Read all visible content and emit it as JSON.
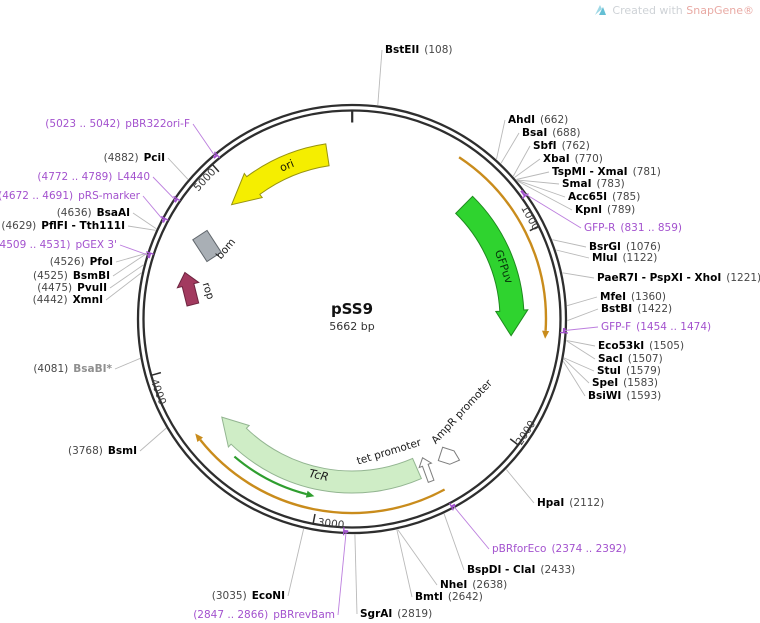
{
  "watermark": {
    "created_with": "Created with",
    "brand": "SnapGene",
    "registered": "®"
  },
  "plasmid": {
    "name": "pSS9",
    "size": "5662 bp",
    "length_bp": 5662
  },
  "ruler": {
    "ticks": [
      1000,
      2000,
      3000,
      4000,
      5000
    ],
    "origin_bp": 1
  },
  "colors": {
    "ring": "#2E2E2E",
    "leader": "#B9B9B9",
    "enzyme_name": "#000000",
    "position_text": "#474747",
    "muted_site": "#8F8F8F",
    "primer": "#A352CE",
    "primer_leader": "#BC7EDE",
    "transcript_arc": "#C98C1C",
    "inner_arrow": "#2F9E2F",
    "tick_label": "#3A3A3A"
  },
  "features": [
    {
      "label": "ori",
      "fill": "#F5EE00",
      "stroke": "#97930F",
      "text": "#1A1A00"
    },
    {
      "label": "GFPuv",
      "fill": "#2FD32F",
      "stroke": "#1E8A1E",
      "text": "#06350A"
    },
    {
      "label": "TcR",
      "fill": "#CFEDC6",
      "stroke": "#93B591",
      "text": "#1A1A1A"
    },
    {
      "label": "rop",
      "fill": "#A23A5F",
      "stroke": "#6E2540",
      "text": "#1A1A1A"
    },
    {
      "label": "bom",
      "fill": "#A9AFB5",
      "stroke": "#61676D",
      "text": "#1A1A1A"
    },
    {
      "label": "tet promoter",
      "fill": "#FFFFFF",
      "stroke": "#7D7D7D",
      "text": "#1A1A1A"
    },
    {
      "label": "AmpR promoter",
      "fill": "#FFFFFF",
      "stroke": "#7D7D7D",
      "text": "#1A1A1A"
    }
  ],
  "sites": [
    {
      "name": "BstEII",
      "pos": "(108)",
      "bp": 108,
      "type": "enzyme"
    },
    {
      "name": "AhdI",
      "pos": "(662)",
      "bp": 662,
      "type": "enzyme"
    },
    {
      "name": "BsaI",
      "pos": "(688)",
      "bp": 688,
      "type": "enzyme"
    },
    {
      "name": "SbfI",
      "pos": "(762)",
      "bp": 762,
      "type": "enzyme"
    },
    {
      "name": "XbaI",
      "pos": "(770)",
      "bp": 770,
      "type": "enzyme"
    },
    {
      "name": "TspMI - XmaI",
      "pos": "(781)",
      "bp": 781,
      "type": "enzyme"
    },
    {
      "name": "SmaI",
      "pos": "(783)",
      "bp": 783,
      "type": "enzyme"
    },
    {
      "name": "Acc65I",
      "pos": "(785)",
      "bp": 785,
      "type": "enzyme"
    },
    {
      "name": "KpnI",
      "pos": "(789)",
      "bp": 789,
      "type": "enzyme"
    },
    {
      "name": "GFP-R",
      "pos": "(831 .. 859)",
      "bp": 845,
      "bp_start": 831,
      "bp_end": 859,
      "type": "primer"
    },
    {
      "name": "BsrGI",
      "pos": "(1076)",
      "bp": 1076,
      "type": "enzyme"
    },
    {
      "name": "MluI",
      "pos": "(1122)",
      "bp": 1122,
      "type": "enzyme"
    },
    {
      "name": "PaeR7I - PspXI - XhoI",
      "pos": "(1221)",
      "bp": 1221,
      "type": "enzyme"
    },
    {
      "name": "MfeI",
      "pos": "(1360)",
      "bp": 1360,
      "type": "enzyme"
    },
    {
      "name": "BstBI",
      "pos": "(1422)",
      "bp": 1422,
      "type": "enzyme"
    },
    {
      "name": "GFP-F",
      "pos": "(1454 .. 1474)",
      "bp": 1464,
      "bp_start": 1454,
      "bp_end": 1474,
      "type": "primer"
    },
    {
      "name": "Eco53kI",
      "pos": "(1505)",
      "bp": 1505,
      "type": "enzyme"
    },
    {
      "name": "SacI",
      "pos": "(1507)",
      "bp": 1507,
      "type": "enzyme"
    },
    {
      "name": "StuI",
      "pos": "(1579)",
      "bp": 1579,
      "type": "enzyme"
    },
    {
      "name": "SpeI",
      "pos": "(1583)",
      "bp": 1583,
      "type": "enzyme"
    },
    {
      "name": "BsiWI",
      "pos": "(1593)",
      "bp": 1593,
      "type": "enzyme"
    },
    {
      "name": "HpaI",
      "pos": "(2112)",
      "bp": 2112,
      "type": "enzyme"
    },
    {
      "name": "pBRforEco",
      "pos": "(2374 .. 2392)",
      "bp": 2383,
      "bp_start": 2374,
      "bp_end": 2392,
      "type": "primer"
    },
    {
      "name": "BspDI - ClaI",
      "pos": "(2433)",
      "bp": 2433,
      "type": "enzyme"
    },
    {
      "name": "NheI",
      "pos": "(2638)",
      "bp": 2638,
      "type": "enzyme"
    },
    {
      "name": "BmtI",
      "pos": "(2642)",
      "bp": 2642,
      "type": "enzyme"
    },
    {
      "name": "SgrAI",
      "pos": "(2819)",
      "bp": 2819,
      "type": "enzyme"
    },
    {
      "name": "pBRrevBam",
      "pos": "(2847 .. 2866)",
      "bp": 2856,
      "bp_start": 2847,
      "bp_end": 2866,
      "type": "primer"
    },
    {
      "name": "EcoNI",
      "pos": "(3035)",
      "bp": 3035,
      "type": "enzyme"
    },
    {
      "name": "BsmI",
      "pos": "(3768)",
      "bp": 3768,
      "type": "enzyme"
    },
    {
      "name": "BsaBI*",
      "pos": "(4081)",
      "bp": 4081,
      "type": "enzyme",
      "muted": true
    },
    {
      "name": "XmnI",
      "pos": "(4442)",
      "bp": 4442,
      "type": "enzyme"
    },
    {
      "name": "PvuII",
      "pos": "(4475)",
      "bp": 4475,
      "type": "enzyme"
    },
    {
      "name": "BsmBI",
      "pos": "(4525)",
      "bp": 4525,
      "type": "enzyme"
    },
    {
      "name": "PfoI",
      "pos": "(4526)",
      "bp": 4526,
      "type": "enzyme"
    },
    {
      "name": "pGEX 3'",
      "pos": "(4509 .. 4531)",
      "bp": 4520,
      "bp_start": 4509,
      "bp_end": 4531,
      "type": "primer"
    },
    {
      "name": "PflFI - Tth111I",
      "pos": "(4629)",
      "bp": 4629,
      "type": "enzyme"
    },
    {
      "name": "BsaAI",
      "pos": "(4636)",
      "bp": 4636,
      "type": "enzyme"
    },
    {
      "name": "pRS-marker",
      "pos": "(4672 .. 4691)",
      "bp": 4681,
      "bp_start": 4672,
      "bp_end": 4691,
      "type": "primer"
    },
    {
      "name": "L4440",
      "pos": "(4772 .. 4789)",
      "bp": 4780,
      "bp_start": 4772,
      "bp_end": 4789,
      "type": "primer"
    },
    {
      "name": "PciI",
      "pos": "(4882)",
      "bp": 4882,
      "type": "enzyme"
    },
    {
      "name": "pBR322ori-F",
      "pos": "(5023 .. 5042)",
      "bp": 5032,
      "bp_start": 5023,
      "bp_end": 5042,
      "type": "primer"
    }
  ]
}
